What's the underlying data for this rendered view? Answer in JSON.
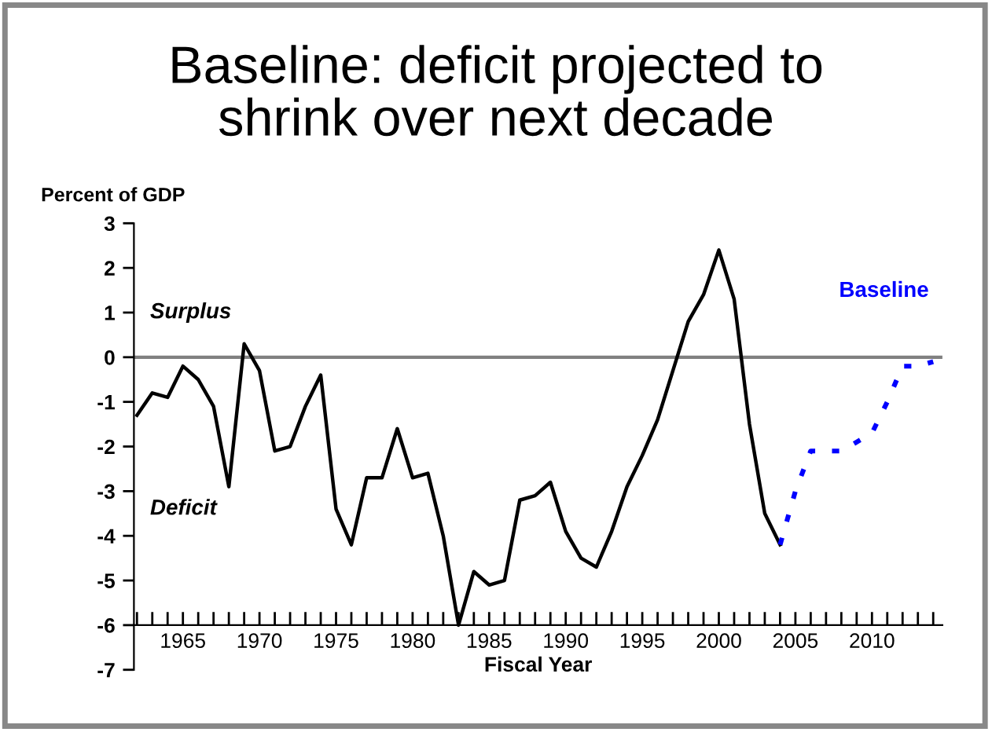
{
  "chart_data": {
    "type": "line",
    "title": "Baseline: deficit projected to\nshrink over next decade",
    "ylabel": "Percent of GDP",
    "xlabel": "Fiscal Year",
    "xlim": [
      1961.8,
      2014.6
    ],
    "ylim": [
      -7,
      3
    ],
    "yticks": [
      -7,
      -6,
      -5,
      -4,
      -3,
      -2,
      -1,
      0,
      1,
      2,
      3
    ],
    "xticks": [
      1965,
      1970,
      1975,
      1980,
      1985,
      1990,
      1995,
      2000,
      2005,
      2010
    ],
    "grid": false,
    "legend": false,
    "marker": "none",
    "series": [
      {
        "color": "#000000",
        "line_style": "solid",
        "x": [
          1962,
          1963,
          1964,
          1965,
          1966,
          1967,
          1968,
          1969,
          1970,
          1971,
          1972,
          1973,
          1974,
          1975,
          1976,
          1977,
          1978,
          1979,
          1980,
          1981,
          1982,
          1983,
          1984,
          1985,
          1986,
          1987,
          1988,
          1989,
          1990,
          1991,
          1992,
          1993,
          1994,
          1995,
          1996,
          1997,
          1998,
          1999,
          2000,
          2001,
          2002,
          2003,
          2004
        ],
        "values": [
          -1.3,
          -0.8,
          -0.9,
          -0.2,
          -0.5,
          -1.1,
          -2.9,
          0.3,
          -0.3,
          -2.1,
          -2.0,
          -1.1,
          -0.4,
          -3.4,
          -4.2,
          -2.7,
          -2.7,
          -1.6,
          -2.7,
          -2.6,
          -4.0,
          -6.0,
          -4.8,
          -5.1,
          -5.0,
          -3.2,
          -3.1,
          -2.8,
          -3.9,
          -4.5,
          -4.7,
          -3.9,
          -2.9,
          -2.2,
          -1.4,
          -0.3,
          0.8,
          1.4,
          2.4,
          1.3,
          -1.5,
          -3.5,
          -4.2
        ]
      },
      {
        "name": "Baseline",
        "color": "#0000ff",
        "line_style": "dotted",
        "x": [
          2004,
          2005,
          2006,
          2007,
          2008,
          2009,
          2010,
          2011,
          2012,
          2013,
          2014
        ],
        "values": [
          -4.2,
          -3.0,
          -2.1,
          -2.1,
          -2.1,
          -1.9,
          -1.7,
          -1.0,
          -0.2,
          -0.2,
          -0.1
        ]
      }
    ],
    "ref_lines": [
      {
        "axis": "y",
        "value": 0,
        "label": null,
        "color": "#808080",
        "line_style": "solid"
      }
    ],
    "annotations": [
      "Surplus",
      "Deficit"
    ]
  }
}
